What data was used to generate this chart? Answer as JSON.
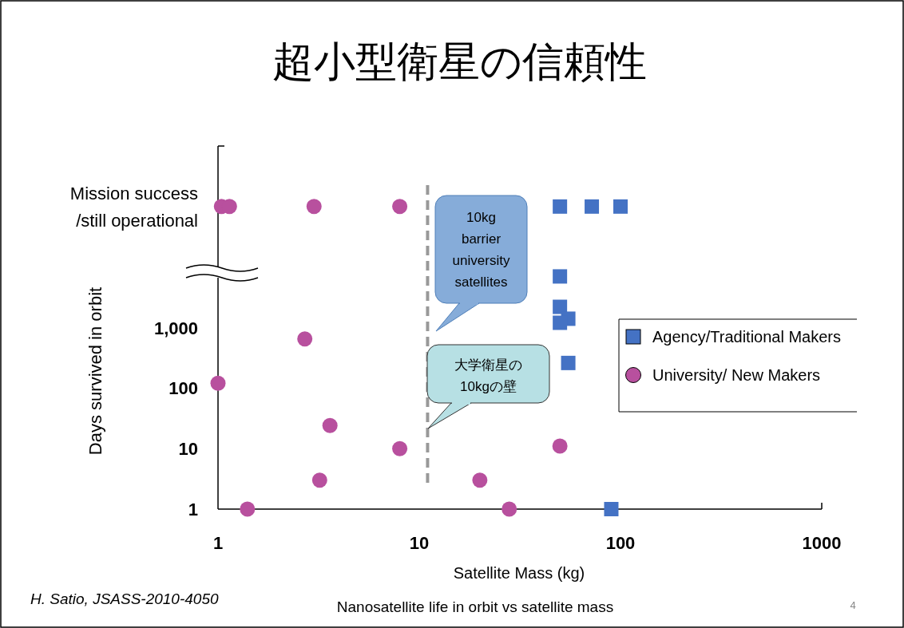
{
  "chart_data": {
    "type": "scatter",
    "title": "超小型衛星の信頼性",
    "xlabel": "Satellite Mass (kg)",
    "ylabel": "Days survived  in orbit",
    "log": "xy",
    "grid": false,
    "legend": "right",
    "xlim": [
      1,
      1000
    ],
    "ylim": [
      1,
      1000000
    ],
    "xticks": [
      1,
      10,
      100,
      1000
    ],
    "yticks": [
      1,
      10,
      100,
      {
        "value": 1000,
        "label": "1,000"
      },
      {
        "value": 100000,
        "label": "Mission success\n/still operational"
      }
    ],
    "series": [
      {
        "name": "Agency/Traditional Makers",
        "marker": "square",
        "color": "#4472c4",
        "x": [
          50,
          72,
          100,
          50,
          50,
          55,
          50,
          55,
          90
        ],
        "values": [
          100000,
          100000,
          100000,
          7000,
          2200,
          1400,
          1200,
          260,
          1
        ]
      },
      {
        "name": "University/ New Makers",
        "marker": "circle",
        "color": "#b8509e",
        "x": [
          1.04,
          1.14,
          3,
          8,
          1,
          2.7,
          3.6,
          8,
          3.2,
          1.4,
          20,
          28,
          50
        ],
        "values": [
          100000,
          100000,
          100000,
          100000,
          120,
          650,
          24,
          10,
          3,
          1,
          3,
          1,
          11
        ]
      }
    ],
    "ref_lines": [
      {
        "axis": "x",
        "value": 11,
        "color": "#999999",
        "line_style": "dashed"
      }
    ],
    "annotations": [
      "10kg\nbarrier\nuniversity\nsatellites",
      "大学衛星の\n10kgの壁",
      "H. Satio, JSASS-2010-4050",
      "Nanosatellite life in orbit vs satellite mass",
      "4"
    ]
  }
}
